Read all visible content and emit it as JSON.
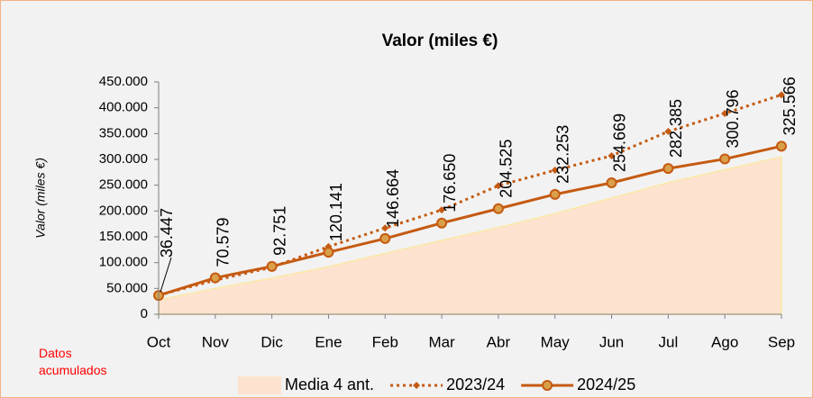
{
  "chart_data": {
    "type": "line",
    "title": "Valor (miles €)",
    "y_label": "Valor (miles €)",
    "annotation": "Datos acumulados",
    "categories": [
      "Oct",
      "Nov",
      "Dic",
      "Ene",
      "Feb",
      "Mar",
      "Abr",
      "May",
      "Jun",
      "Jul",
      "Ago",
      "Sep"
    ],
    "ylim": [
      0,
      450000
    ],
    "yticks": [
      {
        "value": 0,
        "label": "0"
      },
      {
        "value": 50000,
        "label": "50.000"
      },
      {
        "value": 100000,
        "label": "100.000"
      },
      {
        "value": 150000,
        "label": "150.000"
      },
      {
        "value": 200000,
        "label": "200.000"
      },
      {
        "value": 250000,
        "label": "250.000"
      },
      {
        "value": 300000,
        "label": "300.000"
      },
      {
        "value": 350000,
        "label": "350.000"
      },
      {
        "value": 400000,
        "label": "400.000"
      },
      {
        "value": 450000,
        "label": "450.000"
      }
    ],
    "series": [
      {
        "name": "Media 4 ant.",
        "kind": "area",
        "color": "#fde3cf",
        "values": [
          28000,
          50000,
          70000,
          92000,
          118000,
          143000,
          168000,
          195000,
          225000,
          255000,
          280000,
          305000
        ]
      },
      {
        "name": "2023/24",
        "kind": "line",
        "line_style": "dotted",
        "marker": "diamond",
        "color": "#c55a11",
        "values": [
          37000,
          66000,
          91000,
          131000,
          167000,
          202000,
          249000,
          279000,
          307000,
          354000,
          389000,
          425000
        ]
      },
      {
        "name": "2024/25",
        "kind": "line",
        "line_style": "solid",
        "marker": "circle",
        "color": "#c55a11",
        "values": [
          36447,
          70579,
          92751,
          120141,
          146664,
          176650,
          204525,
          232253,
          254669,
          282385,
          300796,
          325566
        ],
        "value_labels": [
          "36.447",
          "70.579",
          "92.751",
          "120.141",
          "146.664",
          "176.650",
          "204.525",
          "232.253",
          "254.669",
          "282.385",
          "300.796",
          "325.566"
        ]
      }
    ]
  }
}
